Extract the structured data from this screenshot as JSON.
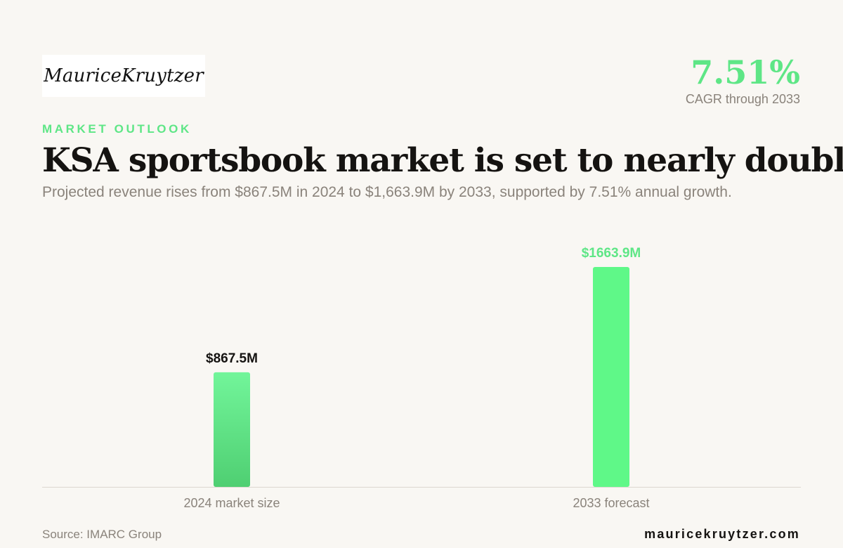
{
  "brand": {
    "logo_text": "MauriceKruytzer",
    "website": "mauricekruytzer.com"
  },
  "kpi": {
    "value": "7.51%",
    "label": "CAGR through 2033"
  },
  "eyebrow": "MARKET OUTLOOK",
  "headline": "KSA sportsbook market is set to nearly double",
  "subhead": "Projected revenue rises from $867.5M in 2024 to $1,663.9M by 2033, supported by 7.51% annual growth.",
  "source": "Source: IMARC Group",
  "colors": {
    "accent": "#5ee686",
    "bar_2024_top": "#72f59a",
    "bar_2024_bottom": "#4fcf72",
    "bar_2033": "#5ff888",
    "label_2024": "#151311",
    "label_2033": "#5ee686",
    "axis": "#dcd7d0",
    "muted_text": "#8a837b"
  },
  "chart_data": {
    "type": "bar",
    "categories": [
      "2024 market size",
      "2033 forecast"
    ],
    "values": [
      867.5,
      1663.9
    ],
    "data_labels": [
      "$867.5M",
      "$1663.9M"
    ],
    "unit": "$M",
    "ylim": [
      0,
      1800
    ],
    "grid": false,
    "legend": "none"
  }
}
